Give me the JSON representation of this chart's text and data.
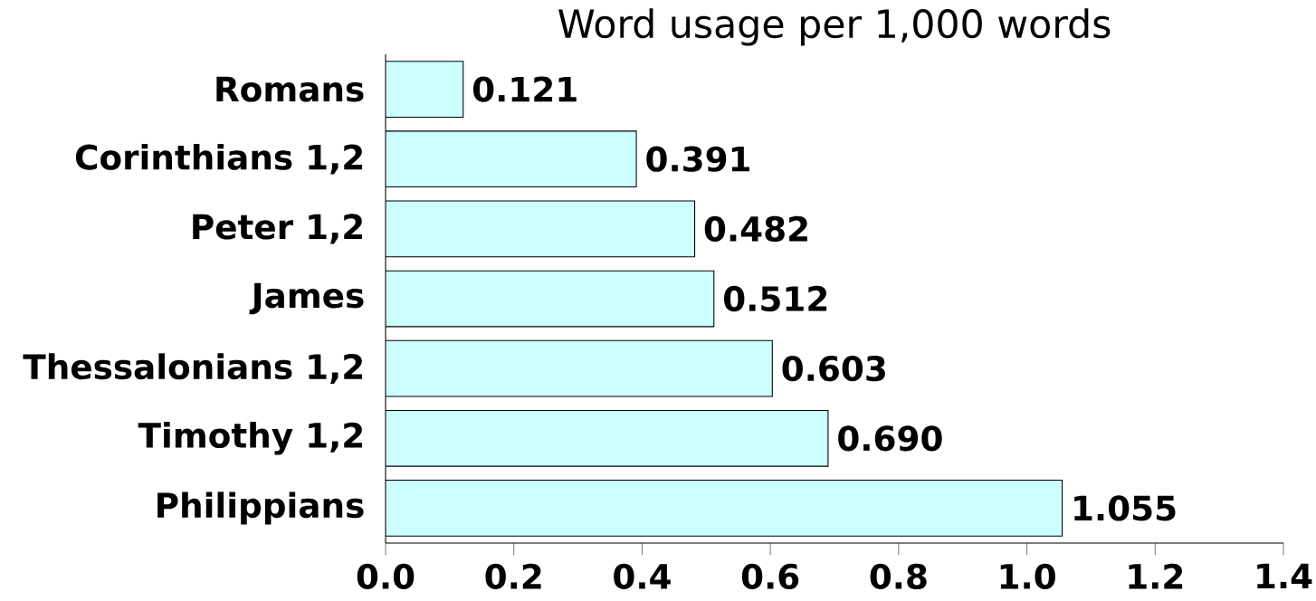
{
  "chart_data": {
    "type": "bar",
    "orientation": "horizontal",
    "title": "Word usage per 1,000 words",
    "categories": [
      "Romans",
      "Corinthians 1,2",
      "Peter 1,2",
      "James",
      "Thessalonians 1,2",
      "Timothy 1,2",
      "Philippians"
    ],
    "values": [
      0.121,
      0.391,
      0.482,
      0.512,
      0.603,
      0.69,
      1.055
    ],
    "value_labels": [
      "0.121",
      "0.391",
      "0.482",
      "0.512",
      "0.603",
      "0.690",
      "1.055"
    ],
    "color": "#ccffff",
    "xlim": [
      0,
      1.4
    ],
    "xticks": [
      {
        "value": 0,
        "label": "0.0"
      },
      0.2,
      0.4,
      0.6,
      0.8,
      {
        "value": 1,
        "label": "1.0"
      },
      1.2,
      1.4
    ],
    "grid": false
  }
}
